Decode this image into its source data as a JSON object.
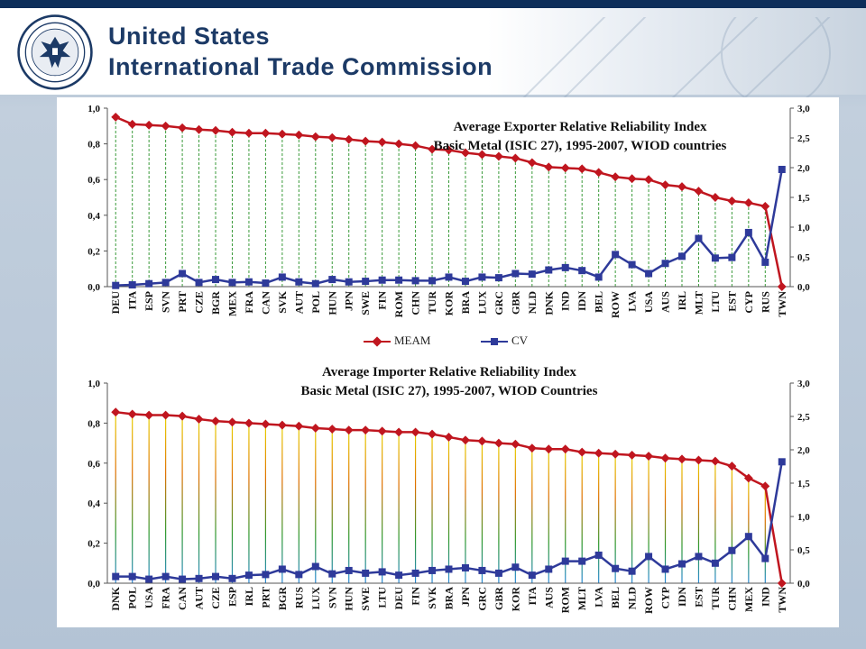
{
  "header": {
    "org_line1": "United States",
    "org_line2": "International Trade Commission",
    "seal_text": "United States International Trade Commission"
  },
  "colors": {
    "meam": "#c0161f",
    "cv": "#2e3a9a",
    "grid_green": "#3a9a3a"
  },
  "chart_data": [
    {
      "type": "line",
      "title": "Average Exporter Relative Reliability Index",
      "subtitle": "Basic Metal (ISIC 27), 1995-2007, WIOD countries",
      "categories": [
        "DEU",
        "ITA",
        "ESP",
        "SVN",
        "PRT",
        "CZE",
        "BGR",
        "MEX",
        "FRA",
        "CAN",
        "SVK",
        "AUT",
        "POL",
        "HUN",
        "JPN",
        "SWE",
        "FIN",
        "ROM",
        "CHN",
        "TUR",
        "KOR",
        "BRA",
        "LUX",
        "GRC",
        "GBR",
        "NLD",
        "DNK",
        "IND",
        "IDN",
        "BEL",
        "ROW",
        "LVA",
        "USA",
        "AUS",
        "IRL",
        "MLT",
        "LTU",
        "EST",
        "CYP",
        "RUS",
        "TWN"
      ],
      "series": [
        {
          "name": "MEAM",
          "axis": "left",
          "values": [
            0.95,
            0.91,
            0.905,
            0.9,
            0.89,
            0.88,
            0.875,
            0.865,
            0.86,
            0.86,
            0.855,
            0.85,
            0.84,
            0.835,
            0.825,
            0.815,
            0.81,
            0.8,
            0.79,
            0.77,
            0.765,
            0.75,
            0.74,
            0.73,
            0.72,
            0.695,
            0.67,
            0.665,
            0.66,
            0.64,
            0.615,
            0.605,
            0.6,
            0.57,
            0.56,
            0.535,
            0.5,
            0.48,
            0.47,
            0.45,
            0.0
          ]
        },
        {
          "name": "CV",
          "axis": "right",
          "values": [
            0.02,
            0.03,
            0.05,
            0.07,
            0.22,
            0.07,
            0.12,
            0.07,
            0.08,
            0.06,
            0.16,
            0.08,
            0.05,
            0.12,
            0.08,
            0.09,
            0.11,
            0.11,
            0.1,
            0.1,
            0.16,
            0.09,
            0.16,
            0.15,
            0.22,
            0.21,
            0.28,
            0.32,
            0.27,
            0.16,
            0.54,
            0.37,
            0.22,
            0.39,
            0.51,
            0.81,
            0.48,
            0.49,
            0.91,
            0.41,
            1.97
          ]
        }
      ],
      "ylim_left": [
        0,
        1.0
      ],
      "ylim_right": [
        0,
        3.0
      ],
      "yticks_left": [
        "0,0",
        "0,2",
        "0,4",
        "0,6",
        "0,8",
        "1,0"
      ],
      "yticks_right": [
        "0,0",
        "0,5",
        "1,0",
        "1,5",
        "2,0",
        "2,5",
        "3,0"
      ],
      "legend": {
        "placement": "bottom",
        "entries": [
          "MEAM",
          "CV"
        ]
      },
      "grid": "vertical dashed"
    },
    {
      "type": "line",
      "title": "Average Importer Relative Reliability Index",
      "subtitle": "Basic Metal (ISIC 27), 1995-2007, WIOD Countries",
      "categories": [
        "DNK",
        "POL",
        "USA",
        "FRA",
        "CAN",
        "AUT",
        "CZE",
        "ESP",
        "IRL",
        "PRT",
        "BGR",
        "RUS",
        "LUX",
        "SVN",
        "HUN",
        "SWE",
        "LTU",
        "DEU",
        "FIN",
        "SVK",
        "BRA",
        "JPN",
        "GRC",
        "GBR",
        "KOR",
        "ITA",
        "AUS",
        "ROM",
        "MLT",
        "LVA",
        "BEL",
        "NLD",
        "ROW",
        "CYP",
        "IDN",
        "EST",
        "TUR",
        "CHN",
        "MEX",
        "IND",
        "TWN"
      ],
      "series": [
        {
          "name": "MEAM",
          "axis": "left",
          "values": [
            0.855,
            0.845,
            0.84,
            0.84,
            0.835,
            0.82,
            0.81,
            0.805,
            0.8,
            0.795,
            0.79,
            0.785,
            0.775,
            0.77,
            0.765,
            0.765,
            0.76,
            0.755,
            0.755,
            0.745,
            0.73,
            0.715,
            0.71,
            0.7,
            0.695,
            0.675,
            0.67,
            0.67,
            0.655,
            0.65,
            0.645,
            0.64,
            0.635,
            0.625,
            0.62,
            0.615,
            0.61,
            0.585,
            0.525,
            0.485,
            0.0
          ]
        },
        {
          "name": "CV",
          "axis": "right",
          "values": [
            0.1,
            0.1,
            0.06,
            0.1,
            0.06,
            0.07,
            0.1,
            0.07,
            0.12,
            0.13,
            0.21,
            0.13,
            0.25,
            0.14,
            0.19,
            0.15,
            0.17,
            0.12,
            0.15,
            0.19,
            0.21,
            0.23,
            0.19,
            0.15,
            0.24,
            0.12,
            0.21,
            0.33,
            0.33,
            0.42,
            0.22,
            0.18,
            0.4,
            0.21,
            0.29,
            0.4,
            0.3,
            0.49,
            0.7,
            0.37,
            1.82
          ]
        }
      ],
      "ylim_left": [
        0,
        1.0
      ],
      "ylim_right": [
        0,
        3.0
      ],
      "yticks_left": [
        "0,0",
        "0,2",
        "0,4",
        "0,6",
        "0,8",
        "1,0"
      ],
      "yticks_right": [
        "0,0",
        "0,5",
        "1,0",
        "1,5",
        "2,0",
        "2,5",
        "3,0"
      ],
      "grid": "vertical colored gradient"
    }
  ]
}
